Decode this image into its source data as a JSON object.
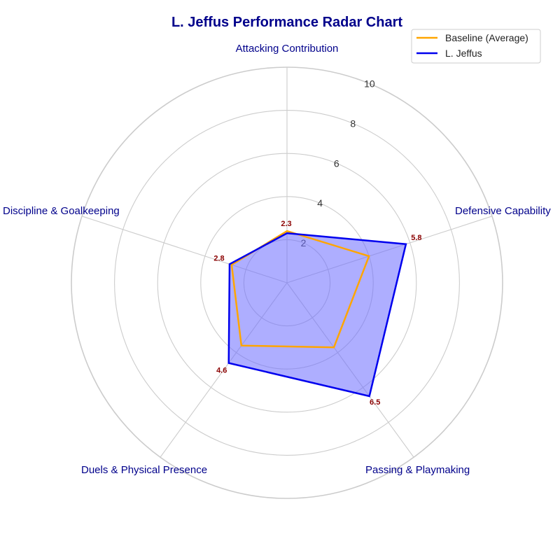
{
  "chart_data": {
    "type": "radar",
    "title": "L. Jeffus Performance Radar Chart",
    "categories": [
      "Attacking Contribution",
      "Defensive Capability",
      "Passing & Playmaking",
      "Duels & Physical Presence",
      "Discipline & Goalkeeping"
    ],
    "rlim": [
      0,
      10
    ],
    "rticks": [
      2,
      4,
      6,
      8,
      10
    ],
    "rtick_labels": [
      "2",
      "4",
      "6",
      "8",
      "10"
    ],
    "grid": true,
    "legend": {
      "placement": "top-right"
    },
    "series": [
      {
        "name": "Baseline (Average)",
        "values": [
          2.4,
          4.0,
          3.7,
          3.6,
          2.7
        ],
        "color": "#FFA500",
        "fill": false
      },
      {
        "name": "L. Jeffus",
        "values": [
          2.3,
          5.8,
          6.5,
          4.6,
          2.8
        ],
        "color": "#0000EE",
        "fill": true,
        "fill_color": "#6B6BFF"
      }
    ],
    "data_labels": [
      "2.3",
      "5.8",
      "6.5",
      "4.6",
      "2.8"
    ],
    "colors": {
      "title": "#00008B",
      "axis_label": "#00008B",
      "value_label": "#8B0000",
      "grid": "#CCCCCC"
    }
  }
}
